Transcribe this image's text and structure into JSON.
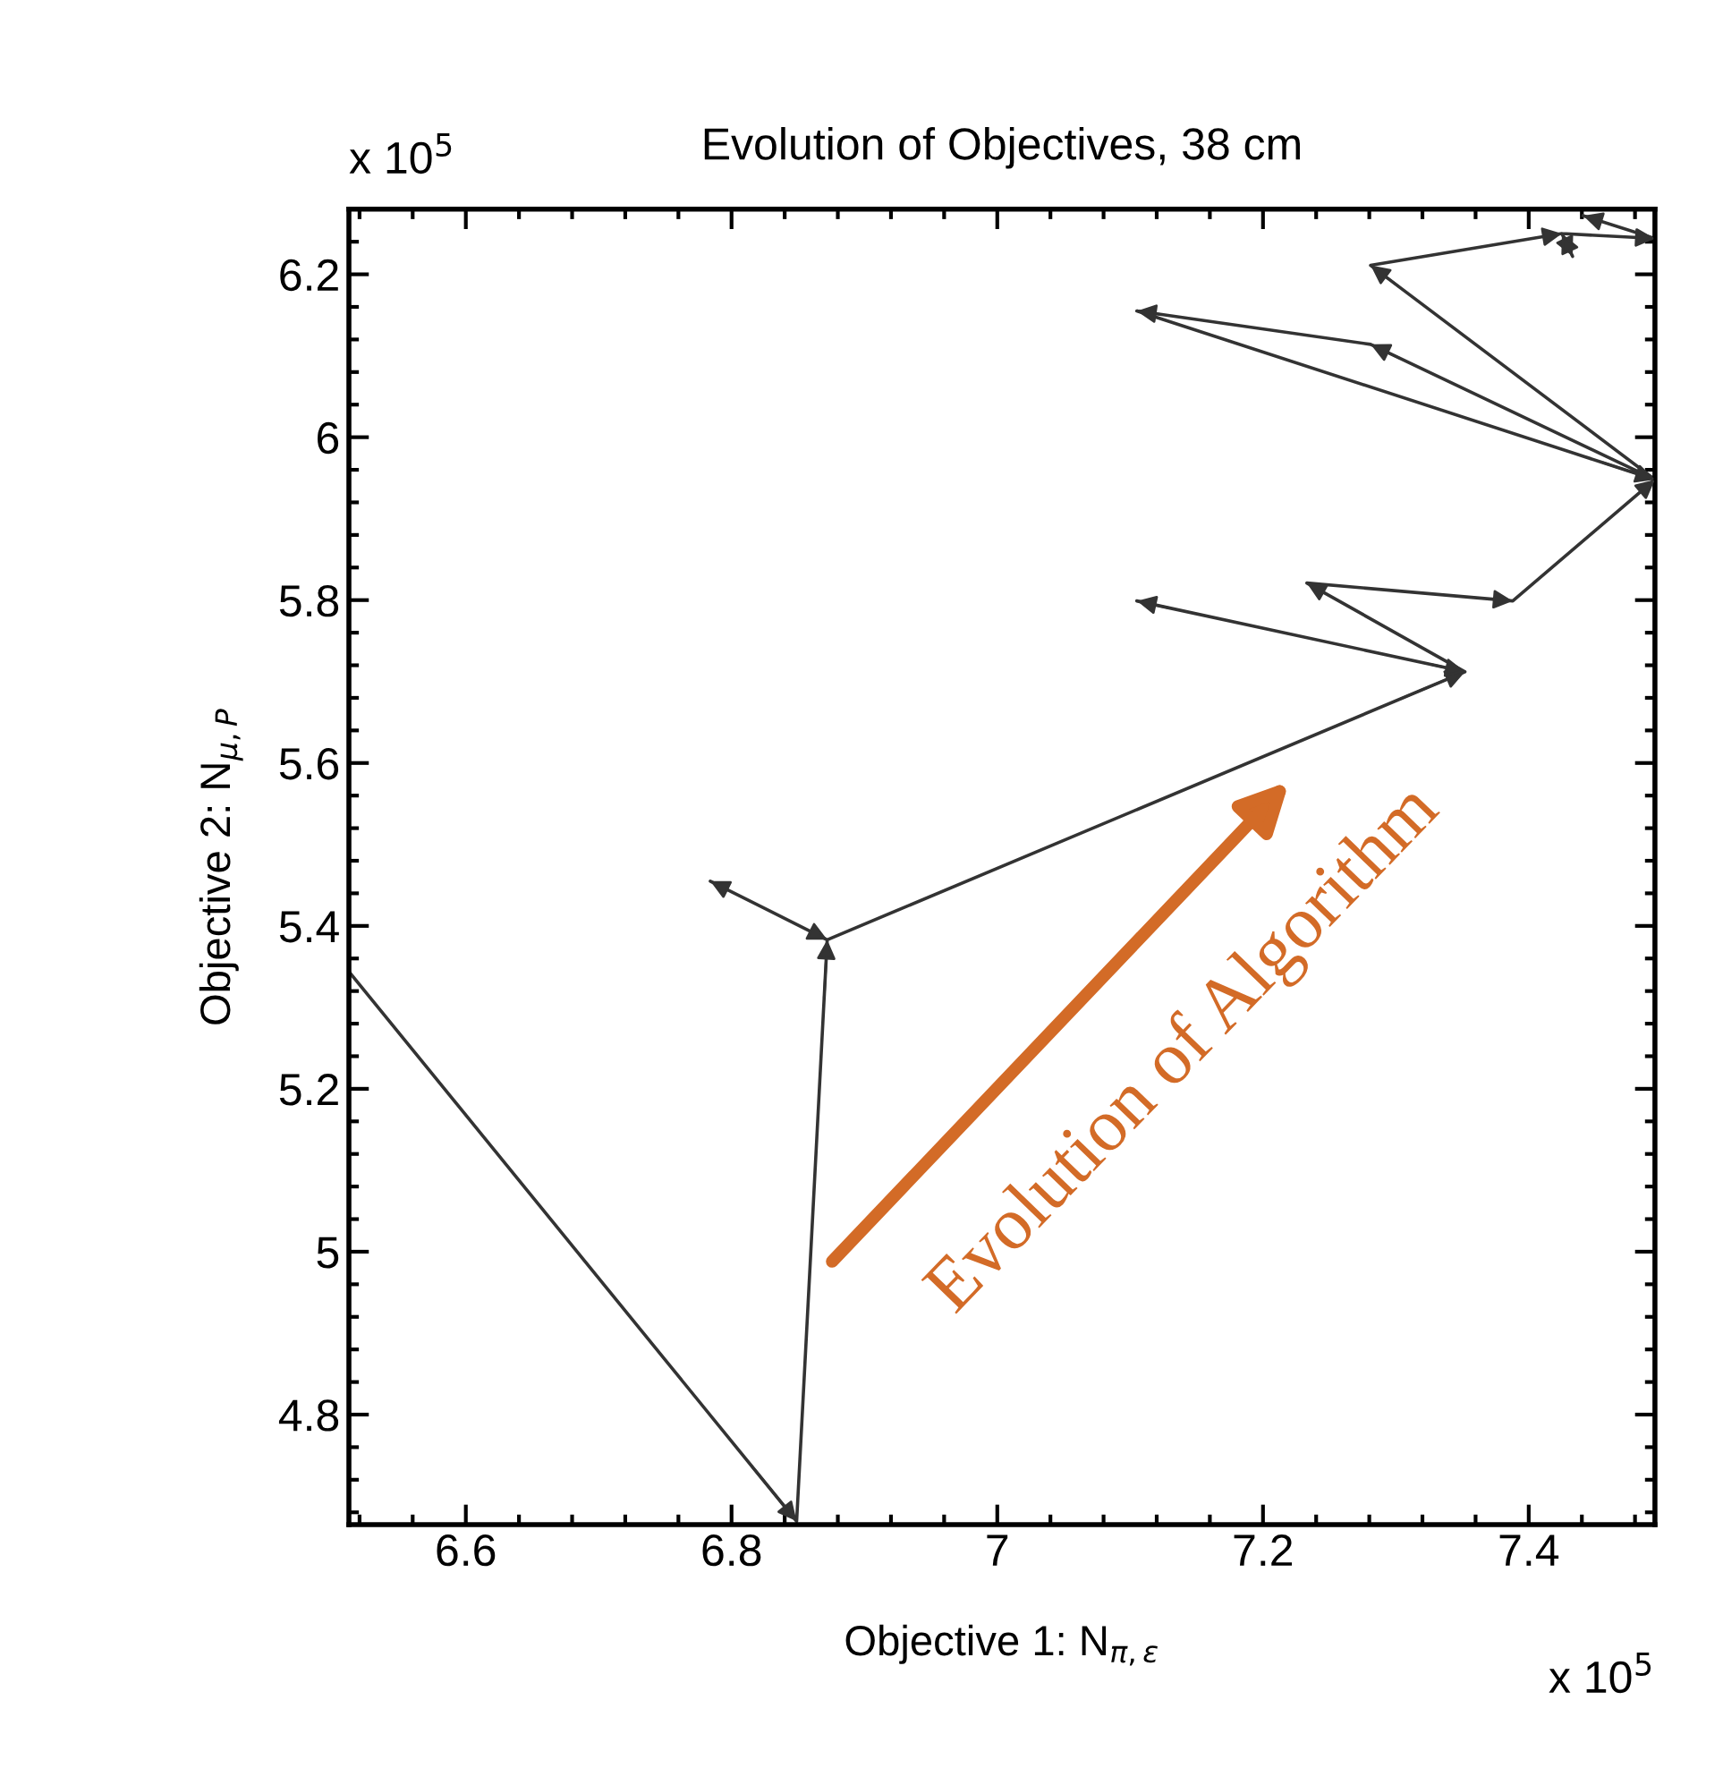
{
  "chart_data": {
    "type": "line",
    "title": "Evolution of Objectives, 38 cm",
    "xlabel": "Objective 1: N$_{π,ε}$",
    "ylabel": "Objective 2: N$_{μ,P}$",
    "annotations": [
      "x 10$^{5}$",
      "x 10$^{5}$",
      "Evolution of Algorithm"
    ],
    "series": [
      {
        "color": "#333333",
        "x": [
          6.512,
          6.849,
          6.872,
          6.784,
          6.872,
          7.352,
          7.105,
          7.352,
          7.233,
          7.388,
          7.495,
          7.281,
          7.105,
          7.495,
          7.281,
          7.425,
          7.433,
          7.425,
          7.495,
          7.441
        ],
        "values": [
          5.344,
          4.669,
          5.383,
          5.455,
          5.383,
          5.712,
          5.799,
          5.712,
          5.821,
          5.799,
          5.948,
          6.114,
          6.155,
          5.948,
          6.211,
          6.25,
          6.222,
          6.25,
          6.244,
          6.272
        ]
      }
    ],
    "xlim": [
      6.512,
      7.495
    ],
    "ylim": [
      4.665,
      6.28
    ],
    "xticks": [
      6.6,
      6.8,
      7,
      7.2,
      7.4
    ],
    "yticks": [
      4.8,
      5,
      5.2,
      5.4,
      5.6,
      5.8,
      6,
      6.2
    ],
    "grid": false,
    "legend": false,
    "marker": "none",
    "line_style": "solid"
  }
}
